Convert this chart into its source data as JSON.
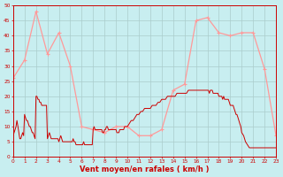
{
  "background_color": "#c8eef0",
  "grid_color": "#aacccc",
  "line_mean_color": "#cc0000",
  "line_gust_color": "#ff9999",
  "xlabel": "Vent moyen/en rafales ( km/h )",
  "xlabel_color": "#cc0000",
  "tick_color": "#cc0000",
  "spine_color": "#cc0000",
  "ylim": [
    0,
    50
  ],
  "xlim": [
    0,
    23
  ],
  "yticks": [
    0,
    5,
    10,
    15,
    20,
    25,
    30,
    35,
    40,
    45,
    50
  ],
  "xticks": [
    0,
    1,
    2,
    3,
    4,
    5,
    6,
    7,
    8,
    9,
    10,
    11,
    12,
    13,
    14,
    15,
    16,
    17,
    18,
    19,
    20,
    21,
    22,
    23
  ],
  "gust_x": [
    0,
    1,
    2,
    3,
    4,
    5,
    6,
    7,
    8,
    9,
    10,
    11,
    12,
    13,
    14,
    15,
    16,
    17,
    18,
    19,
    20,
    21,
    22,
    23
  ],
  "gust_y": [
    26,
    32,
    48,
    34,
    41,
    30,
    10,
    9,
    8,
    10,
    10,
    7,
    7,
    9,
    22,
    24,
    45,
    46,
    41,
    40,
    41,
    41,
    29,
    7
  ],
  "mean_x": [
    0.0,
    0.08,
    0.17,
    0.25,
    0.33,
    0.42,
    0.5,
    0.58,
    0.67,
    0.75,
    0.83,
    0.92,
    1.0,
    1.08,
    1.17,
    1.25,
    1.33,
    1.42,
    1.5,
    1.58,
    1.67,
    1.75,
    1.83,
    1.92,
    2.0,
    2.08,
    2.17,
    2.25,
    2.33,
    2.42,
    2.5,
    2.58,
    2.67,
    2.75,
    2.83,
    2.92,
    3.0,
    3.08,
    3.17,
    3.25,
    3.33,
    3.42,
    3.5,
    3.58,
    3.67,
    3.75,
    3.83,
    3.92,
    4.0,
    4.08,
    4.17,
    4.25,
    4.33,
    4.42,
    4.5,
    4.58,
    4.67,
    4.75,
    4.83,
    4.92,
    5.0,
    5.08,
    5.17,
    5.25,
    5.33,
    5.42,
    5.5,
    5.58,
    5.67,
    5.75,
    5.83,
    5.92,
    6.0,
    6.08,
    6.17,
    6.25,
    6.33,
    6.42,
    6.5,
    6.58,
    6.67,
    6.75,
    6.83,
    6.92,
    7.0,
    7.08,
    7.17,
    7.25,
    7.33,
    7.42,
    7.5,
    7.58,
    7.67,
    7.75,
    7.83,
    7.92,
    8.0,
    8.08,
    8.17,
    8.25,
    8.33,
    8.42,
    8.5,
    8.58,
    8.67,
    8.75,
    8.83,
    8.92,
    9.0,
    9.08,
    9.17,
    9.25,
    9.33,
    9.42,
    9.5,
    9.58,
    9.67,
    9.75,
    9.83,
    9.92,
    10.0,
    10.17,
    10.33,
    10.5,
    10.67,
    10.83,
    11.0,
    11.17,
    11.33,
    11.5,
    11.67,
    11.83,
    12.0,
    12.17,
    12.33,
    12.5,
    12.67,
    12.83,
    13.0,
    13.17,
    13.33,
    13.5,
    13.67,
    13.83,
    14.0,
    14.17,
    14.33,
    14.5,
    14.67,
    14.83,
    15.0,
    15.17,
    15.33,
    15.5,
    15.67,
    15.83,
    16.0,
    16.08,
    16.17,
    16.25,
    16.33,
    16.42,
    16.5,
    16.58,
    16.67,
    16.75,
    16.83,
    16.92,
    17.0,
    17.08,
    17.17,
    17.25,
    17.33,
    17.42,
    17.5,
    17.58,
    17.67,
    17.75,
    17.83,
    17.92,
    18.0,
    18.08,
    18.17,
    18.25,
    18.33,
    18.42,
    18.5,
    18.58,
    18.67,
    18.75,
    18.83,
    18.92,
    19.0,
    19.08,
    19.17,
    19.25,
    19.33,
    19.42,
    19.5,
    19.58,
    19.67,
    19.75,
    19.83,
    19.92,
    20.0,
    20.17,
    20.33,
    20.5,
    20.67,
    20.83,
    21.0,
    21.17,
    21.33,
    21.5,
    21.67,
    21.83,
    22.0,
    22.17,
    22.33,
    22.5,
    22.67,
    22.83,
    23.0
  ],
  "mean_y": [
    7,
    8,
    9,
    10,
    12,
    10,
    8,
    6,
    6,
    7,
    8,
    7,
    14,
    13,
    12,
    12,
    11,
    10,
    10,
    9,
    8,
    8,
    7,
    6,
    20,
    20,
    19,
    19,
    18,
    18,
    17,
    17,
    17,
    17,
    17,
    17,
    6,
    7,
    8,
    7,
    6,
    6,
    6,
    6,
    6,
    6,
    6,
    6,
    5,
    6,
    7,
    6,
    5,
    5,
    5,
    5,
    5,
    5,
    5,
    5,
    5,
    5,
    5,
    6,
    5,
    5,
    4,
    4,
    4,
    4,
    4,
    4,
    4,
    4,
    5,
    4,
    4,
    4,
    4,
    4,
    4,
    4,
    4,
    4,
    9,
    10,
    9,
    9,
    9,
    9,
    9,
    9,
    9,
    9,
    8,
    8,
    9,
    9,
    10,
    10,
    9,
    9,
    9,
    9,
    9,
    9,
    9,
    9,
    9,
    8,
    8,
    8,
    9,
    9,
    9,
    9,
    9,
    10,
    10,
    10,
    10,
    11,
    12,
    12,
    13,
    14,
    14,
    15,
    15,
    16,
    16,
    16,
    16,
    17,
    17,
    17,
    18,
    18,
    19,
    19,
    19,
    20,
    20,
    20,
    20,
    20,
    21,
    21,
    21,
    21,
    21,
    21,
    22,
    22,
    22,
    22,
    22,
    22,
    22,
    22,
    22,
    22,
    22,
    22,
    22,
    22,
    22,
    22,
    22,
    22,
    21,
    22,
    22,
    22,
    21,
    21,
    21,
    21,
    21,
    21,
    20,
    20,
    20,
    20,
    19,
    20,
    19,
    19,
    19,
    19,
    19,
    18,
    17,
    17,
    17,
    17,
    16,
    15,
    14,
    14,
    13,
    12,
    11,
    10,
    8,
    7,
    5,
    4,
    3,
    3,
    3,
    3,
    3,
    3,
    3,
    3,
    3,
    3,
    3,
    3,
    3,
    3,
    3
  ]
}
